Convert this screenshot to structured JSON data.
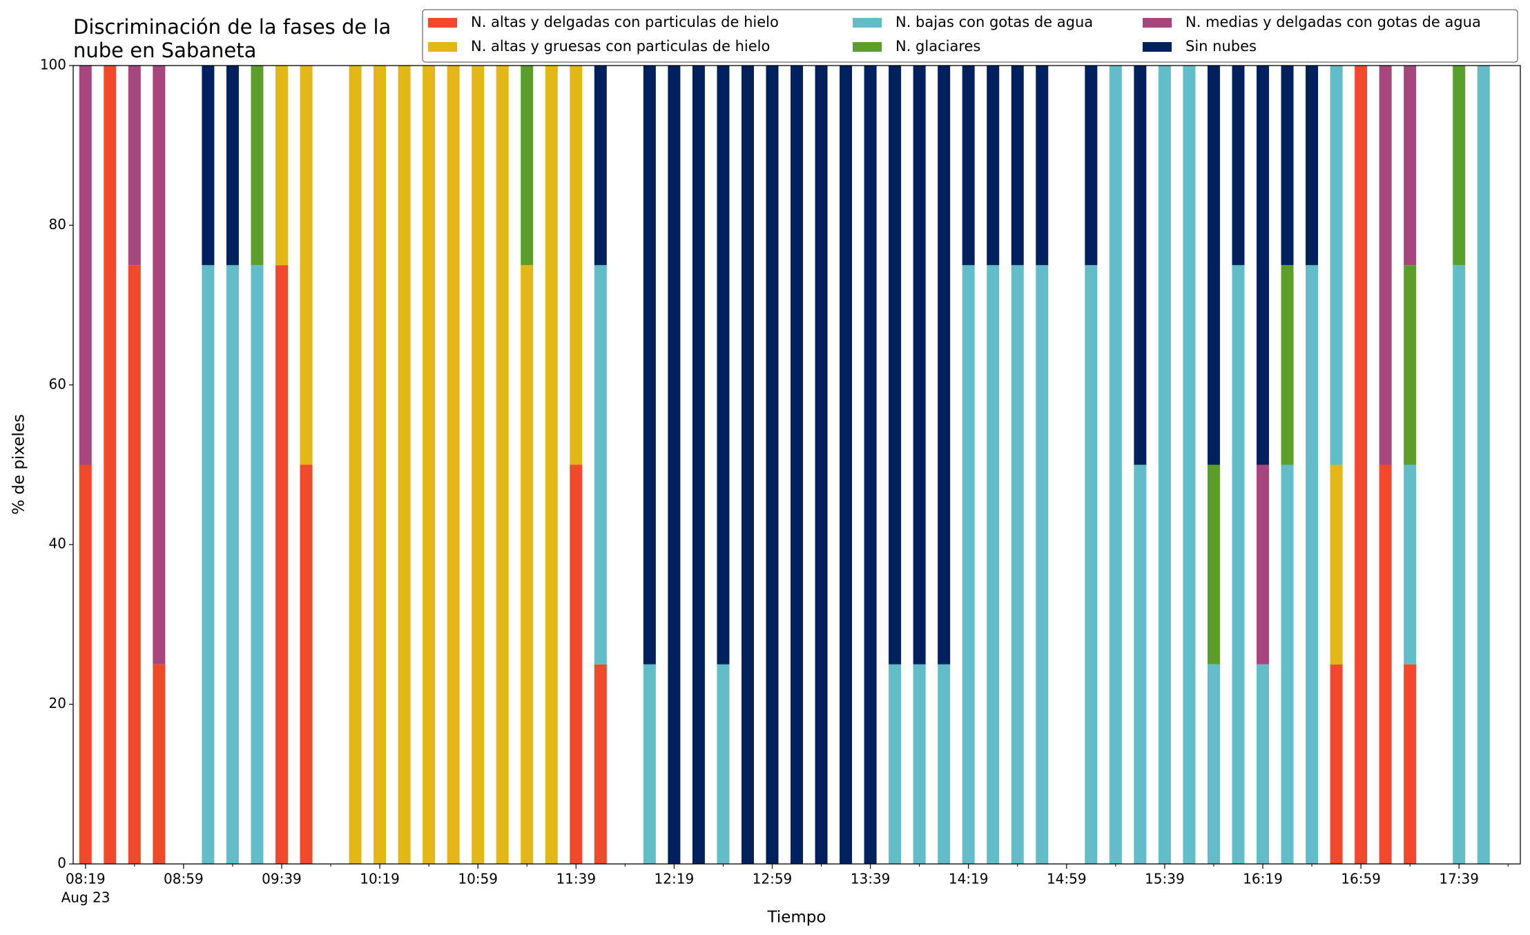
{
  "chart_data": {
    "type": "stacked_bar",
    "title": "Discriminación de la fases de la\nnube en Sabaneta",
    "xlabel": "Tiempo",
    "ylabel": "% de pixeles",
    "date_label": "Aug 23",
    "x": [
      "08:19",
      "08:29",
      "08:39",
      "08:49",
      "09:09",
      "09:19",
      "09:29",
      "09:39",
      "09:49",
      "10:09",
      "10:19",
      "10:29",
      "10:39",
      "10:49",
      "10:59",
      "11:09",
      "11:19",
      "11:29",
      "11:39",
      "11:49",
      "12:09",
      "12:19",
      "12:29",
      "12:39",
      "12:49",
      "12:59",
      "13:09",
      "13:19",
      "13:29",
      "13:39",
      "13:49",
      "13:59",
      "14:09",
      "14:19",
      "14:29",
      "14:39",
      "14:49",
      "15:09",
      "15:19",
      "15:29",
      "15:39",
      "15:49",
      "15:59",
      "16:09",
      "16:19",
      "16:29",
      "16:39",
      "16:49",
      "16:59",
      "17:09",
      "17:19",
      "17:39",
      "17:49"
    ],
    "series": [
      {
        "name": "N. altas y delgadas con particulas de hielo",
        "color": "#f0492c",
        "values": [
          50,
          100,
          75,
          25,
          0,
          0,
          0,
          75,
          50,
          0,
          0,
          0,
          0,
          0,
          0,
          0,
          0,
          0,
          50,
          25,
          0,
          0,
          0,
          0,
          0,
          0,
          0,
          0,
          0,
          0,
          0,
          0,
          0,
          0,
          0,
          0,
          0,
          0,
          0,
          0,
          0,
          0,
          0,
          0,
          0,
          0,
          0,
          25,
          100,
          50,
          25,
          0,
          0
        ]
      },
      {
        "name": "N. altas y gruesas con particulas de hielo",
        "color": "#e3b715",
        "values": [
          0,
          0,
          0,
          0,
          0,
          0,
          0,
          25,
          50,
          100,
          100,
          100,
          100,
          100,
          100,
          100,
          75,
          100,
          50,
          0,
          0,
          0,
          0,
          0,
          0,
          0,
          0,
          0,
          0,
          0,
          0,
          0,
          0,
          0,
          0,
          0,
          0,
          0,
          0,
          0,
          0,
          0,
          0,
          0,
          0,
          0,
          0,
          25,
          0,
          0,
          0,
          0,
          0
        ]
      },
      {
        "name": "N. bajas con gotas de agua",
        "color": "#63bdc9",
        "values": [
          0,
          0,
          0,
          0,
          75,
          75,
          75,
          0,
          0,
          0,
          0,
          0,
          0,
          0,
          0,
          0,
          0,
          0,
          0,
          50,
          25,
          0,
          0,
          25,
          0,
          0,
          0,
          0,
          0,
          0,
          25,
          25,
          25,
          75,
          75,
          75,
          75,
          75,
          100,
          50,
          100,
          100,
          25,
          75,
          25,
          50,
          75,
          50,
          0,
          0,
          25,
          75,
          100
        ]
      },
      {
        "name": "N. glaciares",
        "color": "#5c9e2a",
        "values": [
          0,
          0,
          0,
          0,
          0,
          0,
          25,
          0,
          0,
          0,
          0,
          0,
          0,
          0,
          0,
          0,
          25,
          0,
          0,
          0,
          0,
          0,
          0,
          0,
          0,
          0,
          0,
          0,
          0,
          0,
          0,
          0,
          0,
          0,
          0,
          0,
          0,
          0,
          0,
          0,
          0,
          0,
          25,
          0,
          0,
          25,
          0,
          0,
          0,
          0,
          25,
          25,
          0
        ]
      },
      {
        "name": "N. medias y delgadas con gotas de agua",
        "color": "#a6467d",
        "values": [
          50,
          0,
          25,
          75,
          0,
          0,
          0,
          0,
          0,
          0,
          0,
          0,
          0,
          0,
          0,
          0,
          0,
          0,
          0,
          0,
          0,
          0,
          0,
          0,
          0,
          0,
          0,
          0,
          0,
          0,
          0,
          0,
          0,
          0,
          0,
          0,
          0,
          0,
          0,
          0,
          0,
          0,
          0,
          0,
          25,
          0,
          0,
          0,
          0,
          50,
          25,
          0,
          0
        ]
      },
      {
        "name": "Sin nubes",
        "color": "#01205e",
        "values": [
          0,
          0,
          0,
          0,
          25,
          25,
          0,
          0,
          0,
          0,
          0,
          0,
          0,
          0,
          0,
          0,
          0,
          0,
          0,
          25,
          75,
          100,
          100,
          75,
          100,
          100,
          100,
          100,
          100,
          100,
          75,
          75,
          75,
          25,
          25,
          25,
          25,
          25,
          0,
          50,
          0,
          0,
          50,
          25,
          50,
          25,
          25,
          0,
          0,
          0,
          0,
          0,
          0
        ]
      }
    ],
    "xlim": [
      "08:14",
      "18:04"
    ],
    "xticks": [
      "08:19",
      "08:59",
      "09:39",
      "10:19",
      "10:59",
      "11:39",
      "12:19",
      "12:59",
      "13:39",
      "14:19",
      "14:59",
      "15:39",
      "16:19",
      "16:59",
      "17:39"
    ],
    "xticks_minor": [
      "08:39",
      "09:19",
      "09:59",
      "10:39",
      "11:19",
      "11:59",
      "12:39",
      "13:19",
      "13:59",
      "14:39",
      "15:19",
      "15:59",
      "16:39",
      "17:19",
      "17:59"
    ],
    "ylim": [
      0,
      100
    ],
    "yticks": [
      0,
      20,
      40,
      60,
      80,
      100
    ],
    "grid": false,
    "legend": "upper right"
  }
}
